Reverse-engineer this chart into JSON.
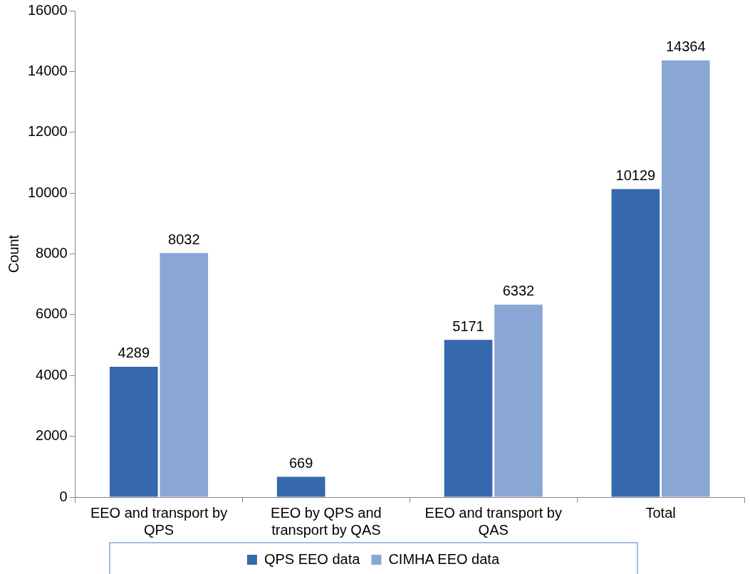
{
  "chart_data": {
    "type": "bar",
    "ylabel": "Count",
    "categories": [
      "EEO and transport by QPS",
      "EEO by QPS and transport by QAS",
      "EEO and transport by QAS",
      "Total"
    ],
    "series": [
      {
        "name": "QPS EEO data",
        "color": "#3568ad",
        "values": [
          4289,
          669,
          5171,
          10129
        ]
      },
      {
        "name": "CIMHA EEO data",
        "color": "#8aa6d4",
        "values": [
          8032,
          null,
          6332,
          14364
        ]
      }
    ],
    "ylim": [
      0,
      16000
    ],
    "yticks": [
      0,
      2000,
      4000,
      6000,
      8000,
      10000,
      12000,
      14000,
      16000
    ],
    "grid": false,
    "legend": "bottom",
    "data_labels": true
  }
}
